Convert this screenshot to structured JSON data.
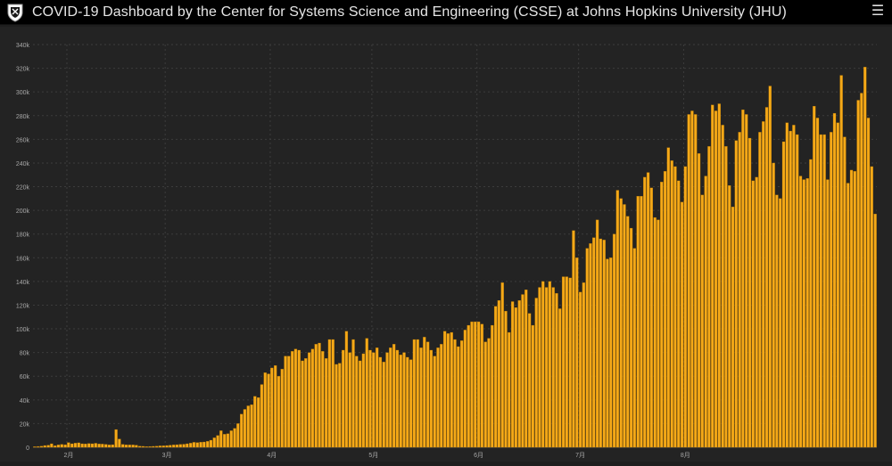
{
  "header": {
    "title": "COVID-19 Dashboard by the Center for Systems Science and Engineering (CSSE) at Johns Hopkins University (JHU)",
    "logo_icon": "university-shield-icon",
    "menu_icon": "hamburger-menu-icon"
  },
  "colors": {
    "bar": "#f5a918",
    "bar_stroke": "#b07300",
    "grid": "#3c3c3c",
    "axis_text": "#a8a8a8",
    "header_bg": "#000000",
    "panel_bg": "#232323"
  },
  "chart_data": {
    "type": "bar",
    "title": "",
    "xlabel": "",
    "ylabel": "",
    "ylim": [
      0,
      340000
    ],
    "yticks": [
      0,
      20000,
      40000,
      60000,
      80000,
      100000,
      120000,
      140000,
      160000,
      180000,
      200000,
      220000,
      240000,
      260000,
      280000,
      300000,
      320000,
      340000
    ],
    "ytick_labels": [
      "0",
      "20k",
      "40k",
      "60k",
      "80k",
      "100k",
      "120k",
      "140k",
      "160k",
      "180k",
      "200k",
      "220k",
      "240k",
      "260k",
      "280k",
      "300k",
      "320k",
      "340k"
    ],
    "grid": true,
    "month_labels": [
      {
        "label": "2月",
        "index": 10
      },
      {
        "label": "3月",
        "index": 39
      },
      {
        "label": "4月",
        "index": 70
      },
      {
        "label": "5月",
        "index": 100
      },
      {
        "label": "6月",
        "index": 131
      },
      {
        "label": "7月",
        "index": 161
      },
      {
        "label": "8月",
        "index": 192
      }
    ],
    "values": [
      500,
      700,
      1000,
      1500,
      1800,
      3000,
      1400,
      2000,
      2500,
      2200,
      4000,
      3000,
      3500,
      3800,
      3000,
      2900,
      3200,
      3000,
      3400,
      2900,
      2700,
      2500,
      2000,
      2200,
      15000,
      7000,
      2500,
      2100,
      2000,
      2000,
      1800,
      1000,
      800,
      600,
      700,
      800,
      1000,
      1200,
      1300,
      1500,
      1800,
      2000,
      2200,
      2500,
      2600,
      3000,
      3500,
      4200,
      4000,
      4300,
      4500,
      5000,
      6000,
      8000,
      10000,
      14000,
      11000,
      11500,
      14000,
      16000,
      20000,
      28000,
      32000,
      35000,
      36000,
      43000,
      42000,
      53000,
      63000,
      62000,
      67000,
      69000,
      60000,
      66000,
      77000,
      77000,
      81000,
      83000,
      82000,
      73000,
      75000,
      80000,
      83000,
      87000,
      88000,
      81000,
      75000,
      91000,
      91000,
      70000,
      71000,
      82000,
      98000,
      80000,
      91000,
      77000,
      73000,
      79000,
      92000,
      82000,
      80000,
      84000,
      76000,
      72000,
      80000,
      84000,
      87000,
      82000,
      78000,
      80000,
      76000,
      74000,
      91000,
      91000,
      84000,
      93000,
      89000,
      82000,
      77000,
      84000,
      87000,
      98000,
      96000,
      97000,
      91000,
      85000,
      90000,
      99000,
      103000,
      106000,
      106000,
      106000,
      104000,
      89000,
      92000,
      103000,
      119000,
      124000,
      139000,
      115000,
      97000,
      123000,
      118000,
      124000,
      129000,
      133000,
      113000,
      103000,
      126000,
      135000,
      140000,
      135000,
      140000,
      135000,
      130000,
      117000,
      144000,
      144000,
      143000,
      183000,
      160000,
      131000,
      139000,
      168000,
      172000,
      177000,
      192000,
      176000,
      175000,
      159000,
      160000,
      180000,
      217000,
      210000,
      205000,
      195000,
      185000,
      168000,
      212000,
      212000,
      228000,
      232000,
      219000,
      194000,
      192000,
      224000,
      233000,
      253000,
      242000,
      237000,
      225000,
      207000,
      237000,
      281000,
      284000,
      281000,
      248000,
      213000,
      229000,
      254000,
      289000,
      284000,
      290000,
      272000,
      254000,
      221000,
      203000,
      259000,
      266000,
      285000,
      281000,
      261000,
      225000,
      228000,
      266000,
      275000,
      287000,
      305000,
      240000,
      213000,
      210000,
      258000,
      274000,
      267000,
      272000,
      264000,
      229000,
      226000,
      227000,
      243000,
      288000,
      278000,
      264000,
      264000,
      226000,
      266000,
      282000,
      274000,
      314000,
      262000,
      223000,
      234000,
      233000,
      293000,
      299000,
      321000,
      278000,
      237000,
      197000
    ]
  }
}
